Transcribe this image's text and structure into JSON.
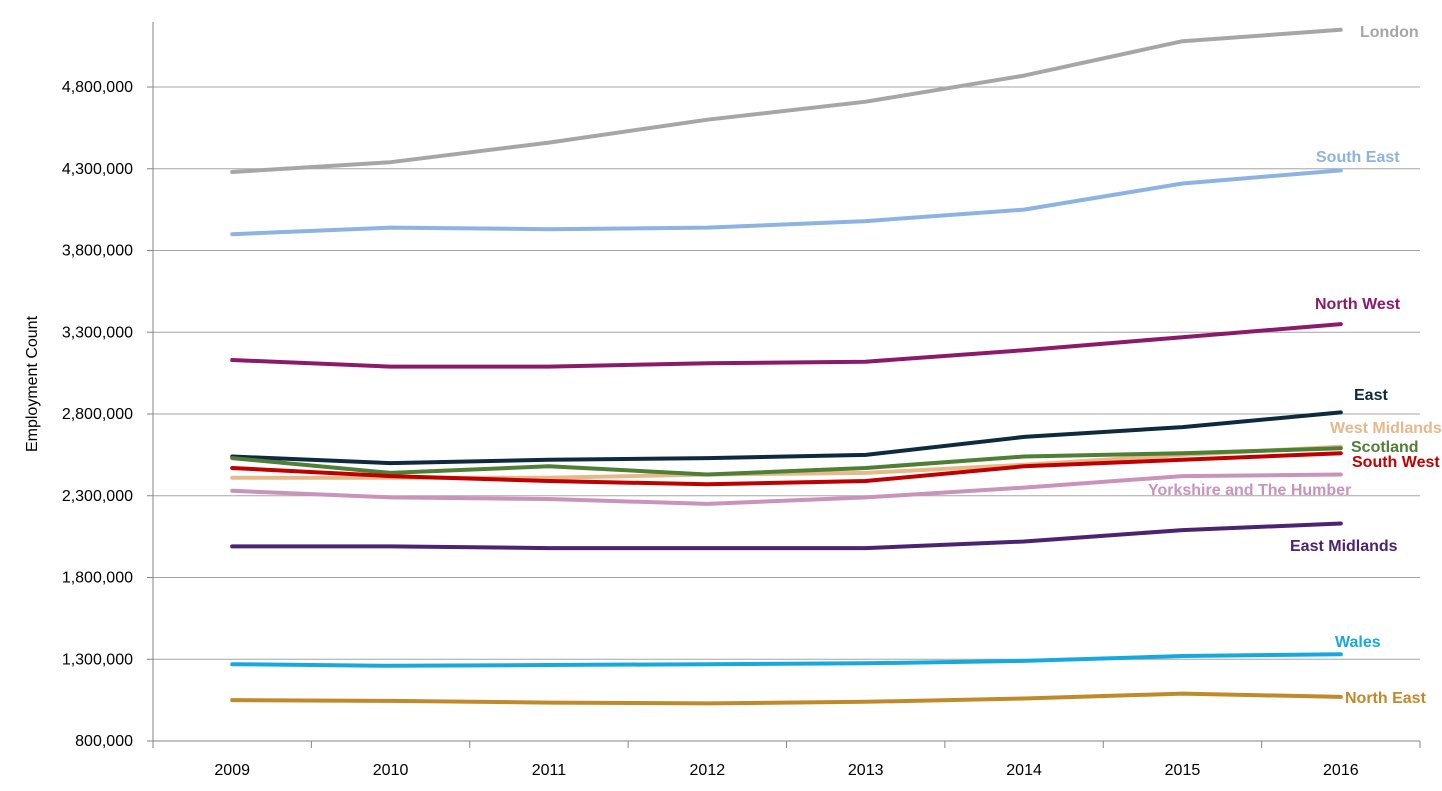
{
  "chart_data": {
    "type": "line",
    "title": "",
    "xlabel": "",
    "ylabel": "Employment Count",
    "x": [
      "2009",
      "2010",
      "2011",
      "2012",
      "2013",
      "2014",
      "2015",
      "2016"
    ],
    "ylim": [
      800000,
      5200000
    ],
    "yticks": [
      800000,
      1300000,
      1800000,
      2300000,
      2800000,
      3300000,
      3800000,
      4300000,
      4800000
    ],
    "ytick_labels": [
      "800,000",
      "1,300,000",
      "1,800,000",
      "2,300,000",
      "2,800,000",
      "3,300,000",
      "3,800,000",
      "4,300,000",
      "4,800,000"
    ],
    "grid": "horizontal",
    "legend": "inline labels at line ends",
    "series": [
      {
        "name": "London",
        "color": "#a6a6a6",
        "values": [
          4280000,
          4340000,
          4460000,
          4600000,
          4710000,
          4870000,
          5080000,
          5150000
        ]
      },
      {
        "name": "South East",
        "color": "#8db3e2",
        "values": [
          3900000,
          3940000,
          3930000,
          3940000,
          3980000,
          4050000,
          4210000,
          4290000
        ]
      },
      {
        "name": "North West",
        "color": "#8b1a6b",
        "values": [
          3130000,
          3090000,
          3090000,
          3110000,
          3120000,
          3190000,
          3270000,
          3350000
        ]
      },
      {
        "name": "East",
        "color": "#0d2a3e",
        "values": [
          2540000,
          2500000,
          2520000,
          2530000,
          2550000,
          2660000,
          2720000,
          2810000
        ]
      },
      {
        "name": "West Midlands",
        "color": "#e6b98a",
        "values": [
          2410000,
          2410000,
          2410000,
          2430000,
          2440000,
          2490000,
          2550000,
          2600000
        ]
      },
      {
        "name": "Scotland",
        "color": "#4e7f35",
        "values": [
          2530000,
          2440000,
          2480000,
          2430000,
          2470000,
          2540000,
          2560000,
          2590000
        ]
      },
      {
        "name": "South West",
        "color": "#c00000",
        "values": [
          2470000,
          2420000,
          2390000,
          2370000,
          2390000,
          2480000,
          2520000,
          2560000
        ]
      },
      {
        "name": "Yorkshire and The Humber",
        "color": "#c993bb",
        "values": [
          2330000,
          2290000,
          2280000,
          2250000,
          2290000,
          2350000,
          2420000,
          2430000
        ]
      },
      {
        "name": "East Midlands",
        "color": "#4b2371",
        "values": [
          1990000,
          1990000,
          1980000,
          1980000,
          1980000,
          2020000,
          2090000,
          2130000
        ]
      },
      {
        "name": "Wales",
        "color": "#17a9de",
        "values": [
          1270000,
          1260000,
          1265000,
          1270000,
          1275000,
          1290000,
          1320000,
          1330000
        ]
      },
      {
        "name": "North East",
        "color": "#c08a2a",
        "values": [
          1050000,
          1045000,
          1035000,
          1030000,
          1040000,
          1060000,
          1090000,
          1070000
        ]
      }
    ]
  }
}
